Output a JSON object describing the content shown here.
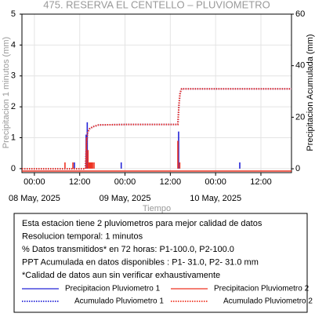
{
  "chart_data": {
    "type": "dual-axis-time",
    "title": "475. RESERVA EL CENTELLO – PLUVIOMETRO",
    "xlabel": "Tiempo",
    "ylabel": "Precipitacion 1 minutos (mm)",
    "y2label": "Precipitacion Acumulada (mm)",
    "xlim": [
      -3.3,
      68.1
    ],
    "xticks": [
      {
        "value": 0,
        "label": "00:00"
      },
      {
        "value": 12,
        "label": "12:00"
      },
      {
        "value": 24,
        "label": "00:00"
      },
      {
        "value": 36,
        "label": "12:00"
      },
      {
        "value": 48,
        "label": "00:00"
      },
      {
        "value": 60,
        "label": "12:00"
      }
    ],
    "xdate_labels": [
      {
        "value": 0,
        "label": "08 May, 2025"
      },
      {
        "value": 24,
        "label": "09 May, 2025"
      },
      {
        "value": 48,
        "label": "10 May, 2025"
      }
    ],
    "ylim": [
      -0.13,
      5
    ],
    "yticks": [
      0,
      1,
      2,
      3,
      4,
      5
    ],
    "y2lim": [
      -1.5,
      60
    ],
    "y2ticks": [
      0,
      20,
      40,
      60
    ],
    "grid": true,
    "series": [
      {
        "name": "Precipitacion Pluviometro 1",
        "color": "#2424d8",
        "kind": "bar",
        "axis": "y",
        "x": [
          10.6,
          13.7,
          14.0,
          23.0,
          38.2,
          54.4
        ],
        "values": [
          0.2,
          1.1,
          1.5,
          0.2,
          1.2,
          0.2
        ]
      },
      {
        "name": "Precipitacion Pluviometro 2",
        "color": "#ee3322",
        "kind": "bar",
        "axis": "y",
        "x": [
          8.1,
          10.2,
          13.8,
          14.2,
          14.5,
          14.8,
          15.1,
          15.4,
          15.8,
          38.0,
          38.5
        ],
        "values": [
          0.2,
          0.2,
          1.0,
          0.6,
          0.2,
          0.2,
          0.2,
          0.2,
          0.2,
          0.9,
          0.2
        ]
      },
      {
        "name": "Acumulado Pluviometro 1",
        "color": "#2424d8",
        "kind": "dotted",
        "axis": "y2",
        "x": [
          -3.3,
          13.5,
          13.8,
          14.1,
          14.6,
          15.5,
          17,
          25,
          38.0,
          38.3,
          38.6,
          39.0,
          45,
          55,
          68.1
        ],
        "values": [
          0,
          0,
          10,
          14,
          15.5,
          16.3,
          17,
          17.2,
          17.2,
          25,
          29.5,
          31,
          31,
          31,
          31
        ]
      },
      {
        "name": "Acumulado Pluviometro 2",
        "color": "#ee3322",
        "kind": "dotted",
        "axis": "y2",
        "x": [
          -3.3,
          13.5,
          13.8,
          14.1,
          14.6,
          15.5,
          17,
          25,
          38.0,
          38.3,
          38.6,
          39.0,
          45,
          55,
          68.1
        ],
        "values": [
          0,
          0,
          10,
          14,
          15.5,
          16.3,
          17,
          17.2,
          17.2,
          25,
          29.5,
          31,
          31,
          31,
          31
        ]
      }
    ],
    "info": [
      "Esta estacion tiene 2 pluviometros para mejor calidad de datos",
      "Resolucion temporal: 1 minutos",
      "% Datos transmitidos* en 72 horas: P1-100.0, P2-100.0",
      "PPT Acumulada en datos disponibles : P1- 31.0, P2- 31.0 mm",
      "*Calidad de datos aun sin verificar exhaustivamente"
    ]
  }
}
